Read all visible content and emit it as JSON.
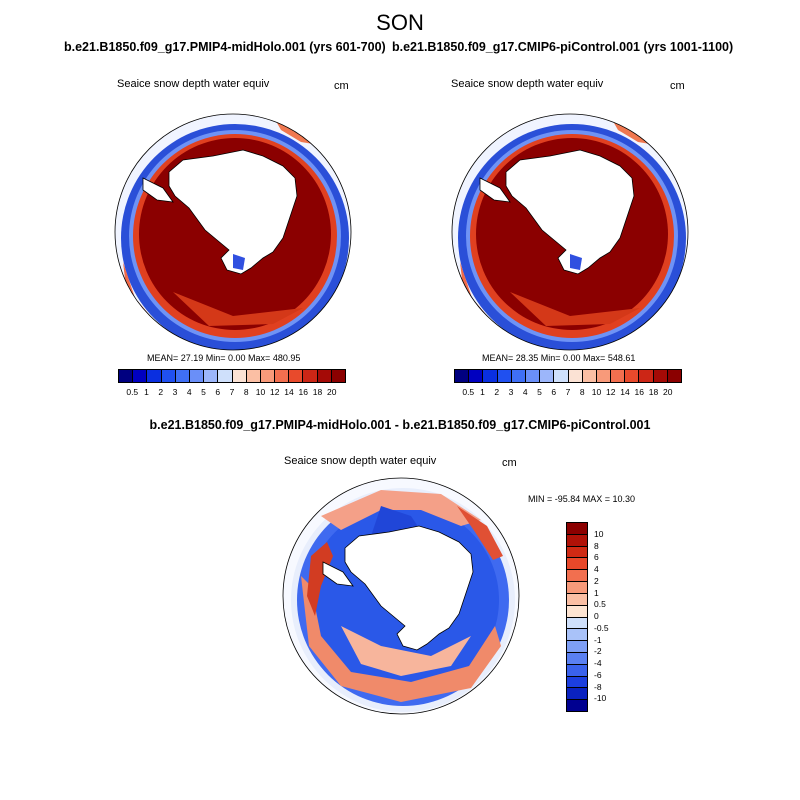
{
  "title": "SON",
  "panels": {
    "top_left": {
      "case": "b.e21.B1850.f09_g17.PMIP4-midHolo.001 (yrs 601-700)",
      "variable": "Seaice snow depth water equiv",
      "units": "cm",
      "stats": "MEAN=  27.19  Min=    0.00  Max= 480.95"
    },
    "top_right": {
      "case": "b.e21.B1850.f09_g17.CMIP6-piControl.001 (yrs 1001-1100)",
      "variable": "Seaice snow depth water equiv",
      "units": "cm",
      "stats": "MEAN=  28.35  Min=    0.00  Max= 548.61"
    },
    "bottom": {
      "case": "b.e21.B1850.f09_g17.PMIP4-midHolo.001 - b.e21.B1850.f09_g17.CMIP6-piControl.001",
      "variable": "Seaice snow depth water equiv",
      "units": "cm",
      "stats": "MIN = -95.84 MAX =  10.30"
    }
  },
  "legends": {
    "abs": {
      "levels": [
        "0.5",
        "1",
        "2",
        "3",
        "4",
        "5",
        "6",
        "7",
        "8",
        "10",
        "12",
        "14",
        "16",
        "18",
        "20"
      ],
      "colors": [
        "#000080",
        "#0000c0",
        "#0a2fe0",
        "#2050f0",
        "#3f6ff5",
        "#6a8ff8",
        "#9cb6fa",
        "#cfe0fb",
        "#fbe2d4",
        "#fbbfa4",
        "#f89a7a",
        "#f26f4f",
        "#e84a2c",
        "#cc2616",
        "#a40a06",
        "#8b0000"
      ]
    },
    "diff": {
      "levels": [
        "10",
        "8",
        "6",
        "4",
        "2",
        "1",
        "0.5",
        "0",
        "-0.5",
        "-1",
        "-2",
        "-4",
        "-6",
        "-8",
        "-10"
      ],
      "colors": [
        "#8b0000",
        "#b01208",
        "#cf2a14",
        "#e8482a",
        "#f26f4f",
        "#f89a7a",
        "#fbbfa4",
        "#fde4d2",
        "#cfe0fb",
        "#a9c2f9",
        "#7e9ff6",
        "#5a80f2",
        "#3a62ec",
        "#1c3fdf",
        "#0a22c0",
        "#000090"
      ]
    }
  }
}
